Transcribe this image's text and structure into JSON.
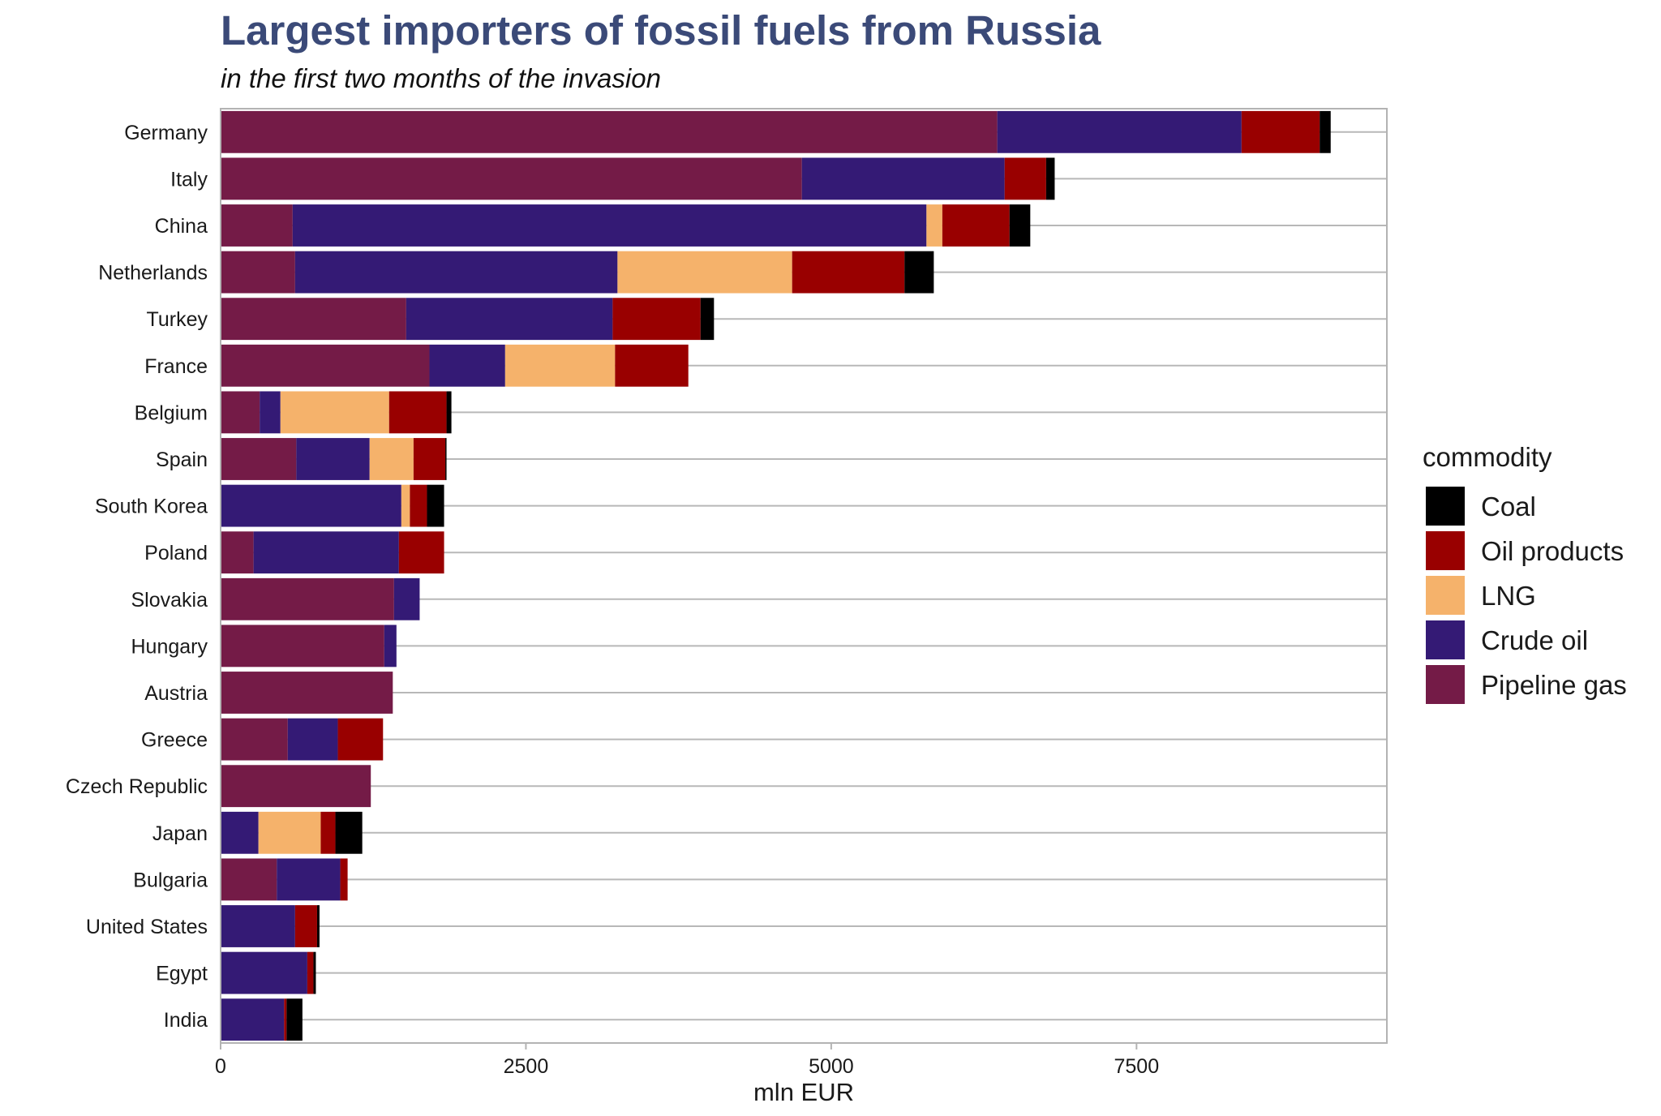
{
  "chart_data": {
    "type": "bar",
    "orientation": "horizontal",
    "stacked": true,
    "title": "Largest importers of fossil fuels from Russia",
    "subtitle": "in the first two months of the invasion",
    "xlabel": "mln EUR",
    "ylabel": "",
    "xlim": [
      0,
      9550
    ],
    "x_ticks": [
      0,
      2500,
      5000,
      7500
    ],
    "grid": "horizontal lines per category",
    "legend_title": "commodity",
    "legend_position": "right",
    "categories": [
      "Germany",
      "Italy",
      "China",
      "Netherlands",
      "Turkey",
      "France",
      "Belgium",
      "Spain",
      "South Korea",
      "Poland",
      "Slovakia",
      "Hungary",
      "Austria",
      "Greece",
      "Czech Republic",
      "Japan",
      "Bulgaria",
      "United States",
      "Egypt",
      "India"
    ],
    "series": [
      {
        "name": "Pipeline gas",
        "color": "#741b47",
        "values": [
          6360,
          4760,
          590,
          610,
          1520,
          1710,
          320,
          620,
          0,
          270,
          1420,
          1340,
          1410,
          550,
          1230,
          0,
          460,
          0,
          0,
          0
        ]
      },
      {
        "name": "Crude oil",
        "color": "#341a75",
        "values": [
          2000,
          1660,
          5190,
          2640,
          1690,
          620,
          170,
          600,
          1480,
          1190,
          210,
          100,
          0,
          410,
          0,
          310,
          520,
          610,
          710,
          520
        ]
      },
      {
        "name": "LNG",
        "color": "#f5b26b",
        "values": [
          0,
          0,
          130,
          1430,
          0,
          900,
          890,
          360,
          70,
          0,
          0,
          0,
          0,
          0,
          0,
          510,
          0,
          0,
          0,
          0
        ]
      },
      {
        "name": "Oil products",
        "color": "#990000",
        "values": [
          640,
          340,
          550,
          920,
          720,
          600,
          470,
          260,
          140,
          370,
          0,
          0,
          0,
          370,
          0,
          120,
          60,
          180,
          50,
          20
        ]
      },
      {
        "name": "Coal",
        "color": "#000000",
        "values": [
          90,
          70,
          170,
          240,
          110,
          0,
          40,
          10,
          140,
          0,
          0,
          0,
          0,
          0,
          0,
          220,
          0,
          20,
          20,
          130
        ]
      }
    ],
    "legend_order": [
      "Coal",
      "Oil products",
      "LNG",
      "Crude oil",
      "Pipeline gas"
    ]
  }
}
